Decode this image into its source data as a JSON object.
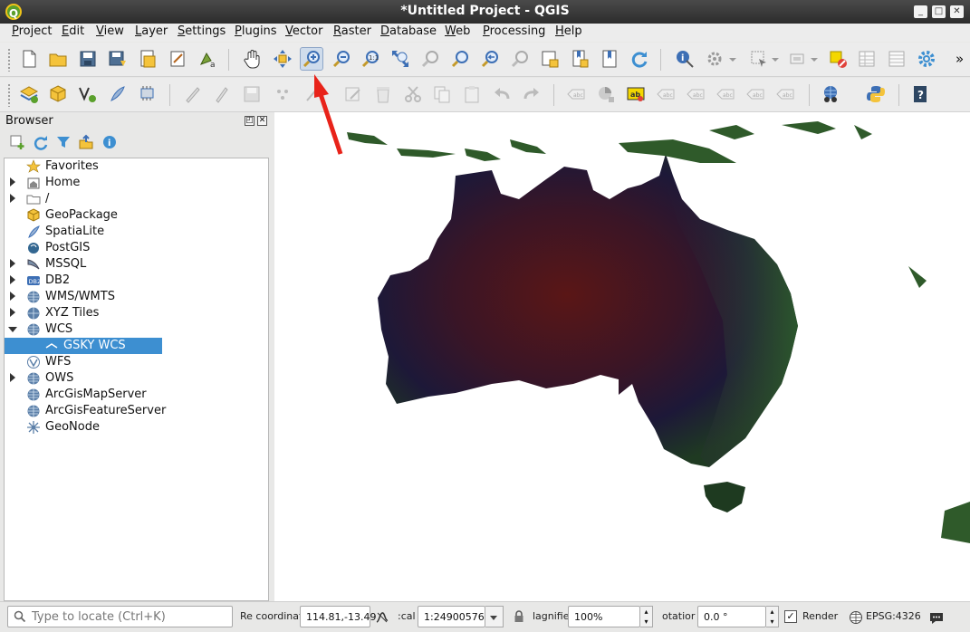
{
  "window": {
    "title": "*Untitled Project - QGIS",
    "app_logo": "Q"
  },
  "menu": [
    "Project",
    "Edit",
    "View",
    "Layer",
    "Settings",
    "Plugins",
    "Vector",
    "Raster",
    "Database",
    "Web",
    "Processing",
    "Help"
  ],
  "toolbar_overflow": "»",
  "browser": {
    "title": "Browser",
    "items": [
      {
        "label": "Favorites",
        "icon": "star-icon",
        "expander": "none",
        "indent": 0
      },
      {
        "label": "Home",
        "icon": "home-folder-icon",
        "expander": "collapsed",
        "indent": 0
      },
      {
        "label": "/",
        "icon": "folder-icon",
        "expander": "collapsed",
        "indent": 0
      },
      {
        "label": "GeoPackage",
        "icon": "geopackage-icon",
        "expander": "none",
        "indent": 0
      },
      {
        "label": "SpatiaLite",
        "icon": "spatialite-icon",
        "expander": "none",
        "indent": 0
      },
      {
        "label": "PostGIS",
        "icon": "postgis-icon",
        "expander": "none",
        "indent": 0
      },
      {
        "label": "MSSQL",
        "icon": "mssql-icon",
        "expander": "collapsed",
        "indent": 0
      },
      {
        "label": "DB2",
        "icon": "db2-icon",
        "expander": "collapsed",
        "indent": 0
      },
      {
        "label": "WMS/WMTS",
        "icon": "globe-icon",
        "expander": "collapsed",
        "indent": 0
      },
      {
        "label": "XYZ Tiles",
        "icon": "tiles-icon",
        "expander": "collapsed",
        "indent": 0
      },
      {
        "label": "WCS",
        "icon": "wcs-icon",
        "expander": "expanded",
        "indent": 0
      },
      {
        "label": "GSKY WCS",
        "icon": "connection-icon",
        "expander": "none",
        "indent": 1,
        "selected": true
      },
      {
        "label": "WFS",
        "icon": "wfs-icon",
        "expander": "none",
        "indent": 0
      },
      {
        "label": "OWS",
        "icon": "globe-icon",
        "expander": "collapsed",
        "indent": 0
      },
      {
        "label": "ArcGisMapServer",
        "icon": "globe-icon",
        "expander": "none",
        "indent": 0
      },
      {
        "label": "ArcGisFeatureServer",
        "icon": "globe-icon",
        "expander": "none",
        "indent": 0
      },
      {
        "label": "GeoNode",
        "icon": "geonode-icon",
        "expander": "none",
        "indent": 0
      }
    ]
  },
  "status": {
    "locator_placeholder": "Type to locate (Ctrl+K)",
    "coord_label": "Re coordinat",
    "coordinate": "114.81,-13.49",
    "scale_label": ":cal",
    "scale": "1:24900576",
    "magnifier_label": "lagnifie",
    "magnifier": "100%",
    "rotation_label": "otatior",
    "rotation": "0.0 °",
    "render_label": "Render",
    "render_checked": "✓",
    "crs": "EPSG:4326"
  },
  "colors": {
    "selection": "#3d8fd1",
    "annotation_arrow": "#e8231a",
    "map_background": "#ffffff"
  }
}
